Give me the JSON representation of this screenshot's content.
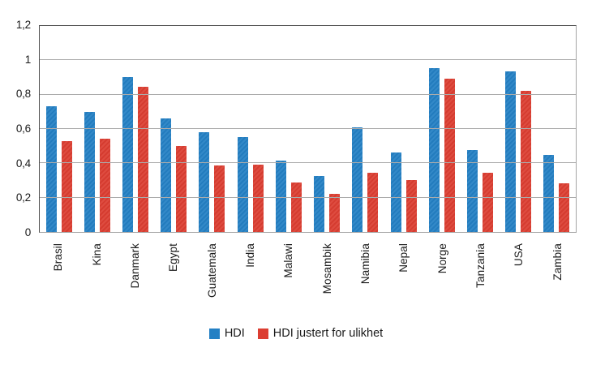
{
  "chart_data": {
    "type": "bar",
    "title": "",
    "xlabel": "",
    "ylabel": "",
    "categories": [
      "Brasil",
      "Kina",
      "Danmark",
      "Egypt",
      "Guatemala",
      "India",
      "Malawi",
      "Mosambik",
      "Namibia",
      "Nepal",
      "Norge",
      "Tanzania",
      "USA",
      "Zambia"
    ],
    "series": [
      {
        "name": "HDI",
        "color": "#2480c4",
        "values": [
          0.73,
          0.699,
          0.901,
          0.662,
          0.581,
          0.554,
          0.418,
          0.327,
          0.608,
          0.463,
          0.955,
          0.476,
          0.937,
          0.448
        ]
      },
      {
        "name": "HDI justert for ulikhet",
        "color": "#dc3e32",
        "values": [
          0.531,
          0.543,
          0.845,
          0.503,
          0.389,
          0.392,
          0.287,
          0.22,
          0.344,
          0.304,
          0.894,
          0.346,
          0.821,
          0.283
        ]
      }
    ],
    "ylim": [
      0,
      1.2
    ],
    "yticks": [
      {
        "value": 0,
        "label": "0"
      },
      {
        "value": 0.2,
        "label": "0,2"
      },
      {
        "value": 0.4,
        "label": "0,4"
      },
      {
        "value": 0.6,
        "label": "0,6"
      },
      {
        "value": 0.8,
        "label": "0,8"
      },
      {
        "value": 1.0,
        "label": "1"
      },
      {
        "value": 1.2,
        "label": "1,2"
      }
    ],
    "grid": true,
    "legend_position": "bottom",
    "x_label_rotation": 90
  }
}
